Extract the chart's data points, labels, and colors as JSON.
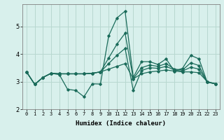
{
  "title": "",
  "xlabel": "Humidex (Indice chaleur)",
  "ylabel": "",
  "xlim": [
    -0.5,
    23.5
  ],
  "ylim": [
    2.0,
    5.8
  ],
  "yticks": [
    2,
    3,
    4,
    5
  ],
  "bg_color": "#d8f0ec",
  "grid_color": "#b8d8d0",
  "line_color": "#1a6b5a",
  "lines": [
    [
      3.35,
      2.9,
      3.15,
      3.3,
      3.25,
      2.72,
      2.68,
      2.45,
      2.92,
      2.91,
      4.65,
      5.3,
      5.55,
      3.15,
      3.72,
      3.72,
      3.62,
      3.82,
      3.38,
      3.48,
      3.95,
      3.82,
      2.98,
      2.92
    ],
    [
      3.35,
      2.9,
      3.15,
      3.3,
      3.28,
      3.28,
      3.28,
      3.28,
      3.3,
      3.35,
      3.45,
      3.55,
      3.65,
      3.1,
      3.28,
      3.35,
      3.38,
      3.42,
      3.38,
      3.35,
      3.35,
      3.32,
      3.0,
      2.92
    ],
    [
      3.35,
      2.9,
      3.15,
      3.3,
      3.28,
      3.28,
      3.28,
      3.28,
      3.3,
      3.35,
      3.85,
      4.35,
      4.75,
      3.1,
      3.5,
      3.6,
      3.55,
      3.65,
      3.45,
      3.42,
      3.68,
      3.58,
      2.98,
      2.92
    ],
    [
      3.35,
      2.9,
      3.15,
      3.3,
      3.28,
      3.28,
      3.28,
      3.28,
      3.3,
      3.35,
      3.65,
      3.95,
      4.2,
      2.68,
      3.4,
      3.5,
      3.48,
      3.55,
      3.42,
      3.38,
      3.52,
      3.45,
      2.98,
      2.92
    ]
  ],
  "xtick_labels": [
    "0",
    "1",
    "2",
    "3",
    "4",
    "5",
    "6",
    "7",
    "8",
    "9",
    "10",
    "11",
    "12",
    "13",
    "14",
    "15",
    "16",
    "17",
    "18",
    "19",
    "20",
    "21",
    "22",
    "23"
  ],
  "xlabel_fontsize": 6.5,
  "ytick_fontsize": 6.0,
  "xtick_fontsize": 5.0
}
